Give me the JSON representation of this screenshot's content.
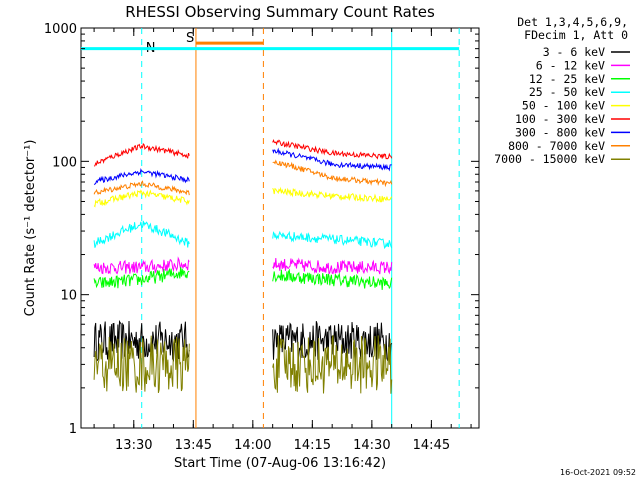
{
  "chart_data": {
    "type": "line",
    "title": "RHESSI Observing Summary Count Rates",
    "xlabel": "Start Time (07-Aug-06 13:16:42)",
    "ylabel": "Count Rate (s⁻¹ detector⁻¹)",
    "y_scale": "log",
    "ylim": [
      1,
      1000
    ],
    "xlim": [
      "13:16:42",
      "14:57:00"
    ],
    "x_ticks": [
      "13:30",
      "13:45",
      "14:00",
      "14:15",
      "14:30",
      "14:45"
    ],
    "y_ticks": [
      "1",
      "10",
      "100",
      "1000"
    ],
    "legend": {
      "placement": "right",
      "header": [
        "Det 1,3,4,5,6,9,",
        "FDecim 1, Att 0"
      ]
    },
    "segments": [
      {
        "start": "13:20",
        "end": "13:44"
      },
      {
        "start": "14:05",
        "end": "14:35"
      }
    ],
    "series": [
      {
        "name": "3 - 6 keV",
        "color": "#000000",
        "values": [
          [
            4.5,
            4.5,
            4.5
          ],
          [
            4.5,
            4.5,
            4.5
          ]
        ],
        "noise": 0.15
      },
      {
        "name": "6 - 12 keV",
        "color": "#ff00ff",
        "values": [
          [
            16,
            16,
            17
          ],
          [
            17,
            16,
            16
          ]
        ],
        "noise": 0.05
      },
      {
        "name": "12 - 25 keV",
        "color": "#00ff00",
        "values": [
          [
            12,
            13,
            15
          ],
          [
            14,
            13,
            12
          ]
        ],
        "noise": 0.05
      },
      {
        "name": "25 - 50 keV",
        "color": "#00ffff",
        "values": [
          [
            24,
            34,
            24
          ],
          [
            28,
            26,
            24
          ]
        ],
        "noise": 0.035
      },
      {
        "name": "50 - 100 keV",
        "color": "#ffff00",
        "values": [
          [
            48,
            58,
            50
          ],
          [
            60,
            55,
            52
          ]
        ],
        "noise": 0.025
      },
      {
        "name": "100 - 300 keV",
        "color": "#ff0000",
        "values": [
          [
            95,
            130,
            110
          ],
          [
            140,
            115,
            108
          ]
        ],
        "noise": 0.02
      },
      {
        "name": "300 - 800 keV",
        "color": "#0000ff",
        "values": [
          [
            70,
            84,
            72
          ],
          [
            120,
            95,
            90
          ]
        ],
        "noise": 0.02
      },
      {
        "name": "800 - 7000 keV",
        "color": "#ff8000",
        "values": [
          [
            58,
            68,
            58
          ],
          [
            100,
            75,
            68
          ]
        ],
        "noise": 0.02
      },
      {
        "name": "7000 - 15000 keV",
        "color": "#808000",
        "values": [
          [
            3,
            3,
            3
          ],
          [
            3,
            3,
            3
          ]
        ],
        "noise": 0.22
      }
    ],
    "annotations": [
      {
        "label": "N",
        "color": "#00ffff",
        "times": [
          "13:32:00"
        ],
        "level": 700
      },
      {
        "label": "S",
        "color": "#ff8000",
        "times": [
          "13:45:40",
          "14:02:40"
        ],
        "level": 770
      },
      {
        "label": "",
        "color": "#00ffff",
        "times": [
          "13:16:42",
          "14:35:00"
        ],
        "level": 700
      },
      {
        "label": "",
        "color": "#00ffff",
        "times": [
          "14:35:00",
          "14:52:00"
        ],
        "level": 700
      }
    ]
  },
  "stamp": "16-Oct-2021 09:52"
}
